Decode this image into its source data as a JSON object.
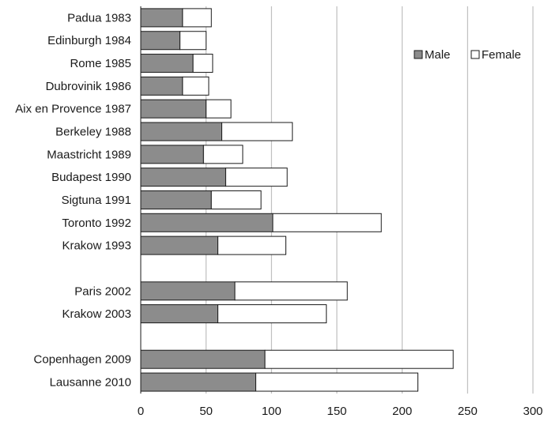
{
  "chart_data": {
    "type": "bar",
    "orientation": "horizontal",
    "stacked": true,
    "categories": [
      "Padua 1983",
      "Edinburgh 1984",
      "Rome 1985",
      "Dubrovinik 1986",
      "Aix en Provence 1987",
      "Berkeley 1988",
      "Maastricht 1989",
      "Budapest 1990",
      "Sigtuna 1991",
      "Toronto 1992",
      "Krakow 1993",
      "",
      "Paris 2002",
      "Krakow 2003",
      "",
      "Copenhagen 2009",
      "Lausanne 2010"
    ],
    "series": [
      {
        "name": "Male",
        "color": "#8c8c8c",
        "values": [
          32,
          30,
          40,
          32,
          50,
          62,
          48,
          65,
          54,
          101,
          59,
          null,
          72,
          59,
          null,
          95,
          88
        ]
      },
      {
        "name": "Female",
        "color": "#ffffff",
        "values": [
          22,
          20,
          15,
          20,
          19,
          54,
          30,
          47,
          38,
          83,
          52,
          null,
          86,
          83,
          null,
          144,
          124
        ]
      }
    ],
    "xlim": [
      0,
      300
    ],
    "xticks": [
      0,
      50,
      100,
      150,
      200,
      250,
      300
    ],
    "grid": "vertical",
    "legend": "top-right",
    "title": "",
    "xlabel": "",
    "ylabel": ""
  }
}
